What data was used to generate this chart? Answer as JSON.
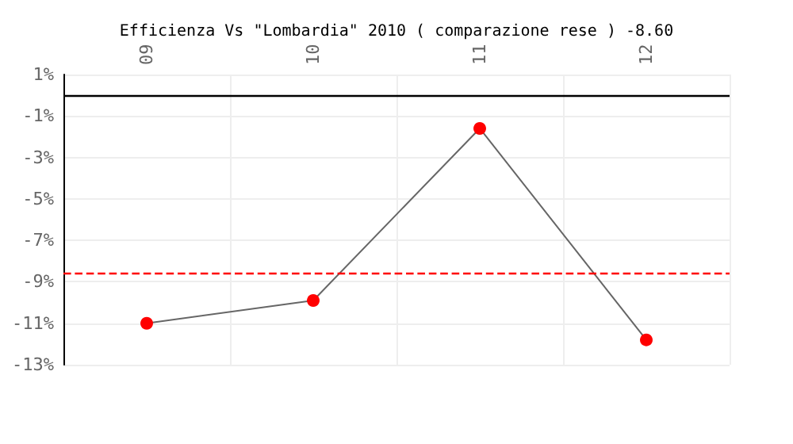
{
  "chart_data": {
    "type": "line",
    "title": "Efficienza Vs \"Lombardia\" 2010 ( comparazione rese ) -8.60",
    "categories": [
      "09",
      "10",
      "11",
      "12"
    ],
    "series": [
      {
        "color": "#ff0000",
        "values": [
          -11.0,
          -9.9,
          -1.6,
          -11.8
        ]
      }
    ],
    "ylim": [
      -13,
      1
    ],
    "yticks": [
      {
        "value": 1,
        "label": "1%"
      },
      {
        "value": -1,
        "label": "-1%"
      },
      {
        "value": -3,
        "label": "-3%"
      },
      {
        "value": -5,
        "label": "-5%"
      },
      {
        "value": -7,
        "label": "-7%"
      },
      {
        "value": -9,
        "label": "-9%"
      },
      {
        "value": -11,
        "label": "-11%"
      },
      {
        "value": -13,
        "label": "-13%"
      }
    ],
    "ref_lines": [
      {
        "axis": "y",
        "value": 0,
        "color": "#000000",
        "line_style": "solid"
      },
      {
        "axis": "y",
        "value": -8.6,
        "color": "#ff0000",
        "line_style": "dashed"
      }
    ],
    "grid": true,
    "marker": "circle"
  }
}
